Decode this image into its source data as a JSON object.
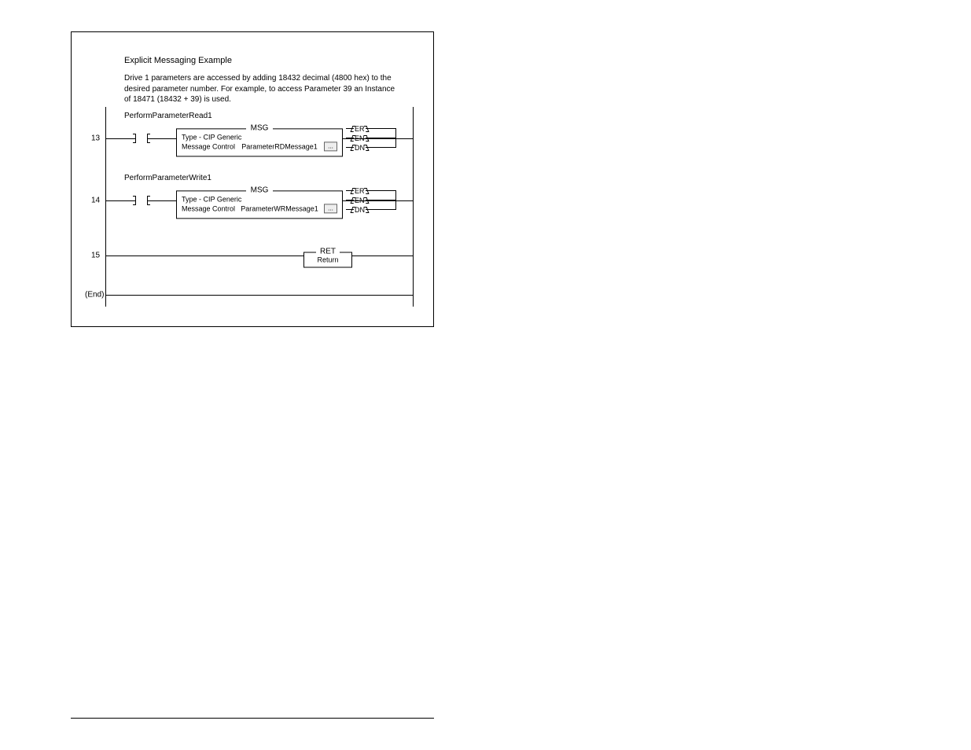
{
  "header": {
    "title": "Explicit Messaging Example",
    "description": "Drive 1 parameters are accessed by adding 18432 decimal (4800 hex) to the desired parameter number. For example, to access Parameter 39 an Instance of 18471 (18432 + 39) is used."
  },
  "rungs": {
    "read": {
      "number": "13",
      "tag": "PerformParameterRead1",
      "block_name": "MSG",
      "type_label": "Type - CIP Generic",
      "ctrl_label": "Message Control",
      "ctrl_value": "ParameterRDMessage1",
      "ellipsis": "...",
      "pins": {
        "en": "EN",
        "dn": "DN",
        "er": "ER"
      }
    },
    "write": {
      "number": "14",
      "tag": "PerformParameterWrite1",
      "block_name": "MSG",
      "type_label": "Type - CIP Generic",
      "ctrl_label": "Message Control",
      "ctrl_value": "ParameterWRMessage1",
      "ellipsis": "...",
      "pins": {
        "en": "EN",
        "dn": "DN",
        "er": "ER"
      }
    },
    "ret": {
      "number": "15",
      "block_name": "RET",
      "body": "Return"
    },
    "end": {
      "label": "(End)"
    }
  },
  "colors": {
    "line": "#000000",
    "bg": "#ffffff"
  }
}
